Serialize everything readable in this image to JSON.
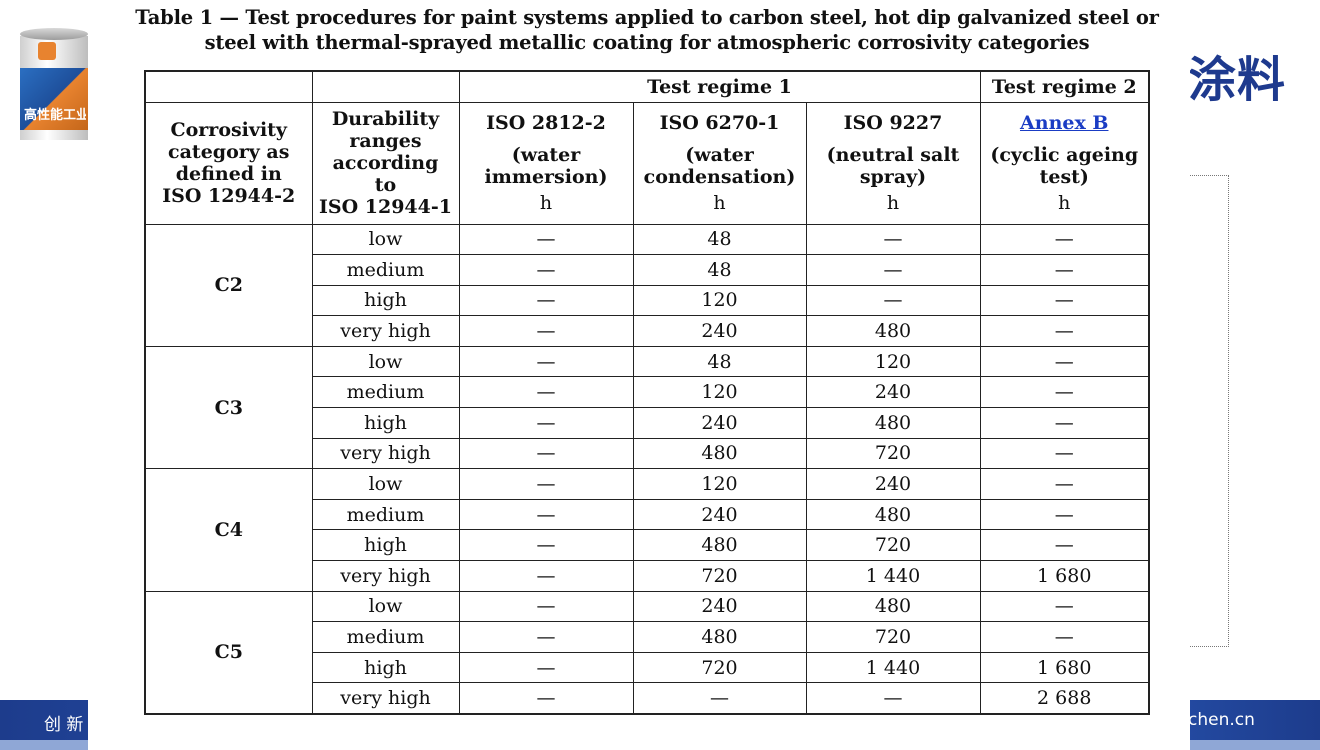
{
  "slide": {
    "brand_text": "涂料",
    "footer_left": "创 新",
    "footer_right": "chen.cn",
    "paint_can_label": "高性能工业"
  },
  "title_line1": "Table 1 — Test procedures for paint systems applied to carbon steel, hot dip galvanized steel or",
  "title_line2": "steel with thermal-sprayed metallic coating for atmospheric corrosivity categories",
  "header": {
    "regime1": "Test regime 1",
    "regime2": "Test regime 2",
    "col_category": [
      "Corrosivity",
      "category as",
      "defined in",
      "ISO 12944-2"
    ],
    "col_durability": [
      "Durability",
      "ranges",
      "according",
      "to",
      "ISO 12944-1"
    ],
    "tests": [
      {
        "name": "ISO 2812-2",
        "desc1": "(water",
        "desc2": "immersion)",
        "unit": "h"
      },
      {
        "name": "ISO 6270-1",
        "desc1": "(water",
        "desc2": "condensation)",
        "unit": "h"
      },
      {
        "name": "ISO 9227",
        "desc1": "(neutral salt",
        "desc2": "spray)",
        "unit": "h"
      },
      {
        "name": "Annex B",
        "desc1": "(cyclic ageing",
        "desc2": "test)",
        "unit": "h"
      }
    ]
  },
  "groups": [
    {
      "category": "C2",
      "rows": [
        {
          "durability": "low",
          "v1": "—",
          "v2": "48",
          "v3": "—",
          "v4": "—"
        },
        {
          "durability": "medium",
          "v1": "—",
          "v2": "48",
          "v3": "—",
          "v4": "—"
        },
        {
          "durability": "high",
          "v1": "—",
          "v2": "120",
          "v3": "—",
          "v4": "—"
        },
        {
          "durability": "very high",
          "v1": "—",
          "v2": "240",
          "v3": "480",
          "v4": "—"
        }
      ]
    },
    {
      "category": "C3",
      "rows": [
        {
          "durability": "low",
          "v1": "—",
          "v2": "48",
          "v3": "120",
          "v4": "—"
        },
        {
          "durability": "medium",
          "v1": "—",
          "v2": "120",
          "v3": "240",
          "v4": "—"
        },
        {
          "durability": "high",
          "v1": "—",
          "v2": "240",
          "v3": "480",
          "v4": "—"
        },
        {
          "durability": "very high",
          "v1": "—",
          "v2": "480",
          "v3": "720",
          "v4": "—"
        }
      ]
    },
    {
      "category": "C4",
      "rows": [
        {
          "durability": "low",
          "v1": "—",
          "v2": "120",
          "v3": "240",
          "v4": "—"
        },
        {
          "durability": "medium",
          "v1": "—",
          "v2": "240",
          "v3": "480",
          "v4": "—"
        },
        {
          "durability": "high",
          "v1": "—",
          "v2": "480",
          "v3": "720",
          "v4": "—"
        },
        {
          "durability": "very high",
          "v1": "—",
          "v2": "720",
          "v3": "1 440",
          "v4": "1 680"
        }
      ]
    },
    {
      "category": "C5",
      "rows": [
        {
          "durability": "low",
          "v1": "—",
          "v2": "240",
          "v3": "480",
          "v4": "—"
        },
        {
          "durability": "medium",
          "v1": "—",
          "v2": "480",
          "v3": "720",
          "v4": "—"
        },
        {
          "durability": "high",
          "v1": "—",
          "v2": "720",
          "v3": "1 440",
          "v4": "1 680"
        },
        {
          "durability": "very high",
          "v1": "—",
          "v2": "—",
          "v3": "—",
          "v4": "2 688"
        }
      ]
    }
  ]
}
